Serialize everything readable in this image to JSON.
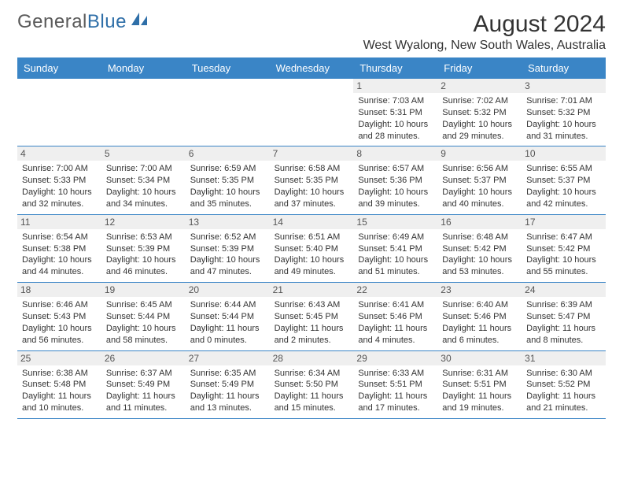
{
  "brand": {
    "name_part1": "General",
    "name_part2": "Blue",
    "accent_color": "#2f6fa8"
  },
  "header": {
    "month_title": "August 2024",
    "location": "West Wyalong, New South Wales, Australia"
  },
  "colors": {
    "header_bg": "#3a85c6",
    "header_text": "#ffffff",
    "daynum_bg": "#efefef",
    "row_border": "#3a85c6"
  },
  "day_names": [
    "Sunday",
    "Monday",
    "Tuesday",
    "Wednesday",
    "Thursday",
    "Friday",
    "Saturday"
  ],
  "weeks": [
    [
      {
        "n": "",
        "sr": "",
        "ss": "",
        "dl": ""
      },
      {
        "n": "",
        "sr": "",
        "ss": "",
        "dl": ""
      },
      {
        "n": "",
        "sr": "",
        "ss": "",
        "dl": ""
      },
      {
        "n": "",
        "sr": "",
        "ss": "",
        "dl": ""
      },
      {
        "n": "1",
        "sr": "Sunrise: 7:03 AM",
        "ss": "Sunset: 5:31 PM",
        "dl": "Daylight: 10 hours and 28 minutes."
      },
      {
        "n": "2",
        "sr": "Sunrise: 7:02 AM",
        "ss": "Sunset: 5:32 PM",
        "dl": "Daylight: 10 hours and 29 minutes."
      },
      {
        "n": "3",
        "sr": "Sunrise: 7:01 AM",
        "ss": "Sunset: 5:32 PM",
        "dl": "Daylight: 10 hours and 31 minutes."
      }
    ],
    [
      {
        "n": "4",
        "sr": "Sunrise: 7:00 AM",
        "ss": "Sunset: 5:33 PM",
        "dl": "Daylight: 10 hours and 32 minutes."
      },
      {
        "n": "5",
        "sr": "Sunrise: 7:00 AM",
        "ss": "Sunset: 5:34 PM",
        "dl": "Daylight: 10 hours and 34 minutes."
      },
      {
        "n": "6",
        "sr": "Sunrise: 6:59 AM",
        "ss": "Sunset: 5:35 PM",
        "dl": "Daylight: 10 hours and 35 minutes."
      },
      {
        "n": "7",
        "sr": "Sunrise: 6:58 AM",
        "ss": "Sunset: 5:35 PM",
        "dl": "Daylight: 10 hours and 37 minutes."
      },
      {
        "n": "8",
        "sr": "Sunrise: 6:57 AM",
        "ss": "Sunset: 5:36 PM",
        "dl": "Daylight: 10 hours and 39 minutes."
      },
      {
        "n": "9",
        "sr": "Sunrise: 6:56 AM",
        "ss": "Sunset: 5:37 PM",
        "dl": "Daylight: 10 hours and 40 minutes."
      },
      {
        "n": "10",
        "sr": "Sunrise: 6:55 AM",
        "ss": "Sunset: 5:37 PM",
        "dl": "Daylight: 10 hours and 42 minutes."
      }
    ],
    [
      {
        "n": "11",
        "sr": "Sunrise: 6:54 AM",
        "ss": "Sunset: 5:38 PM",
        "dl": "Daylight: 10 hours and 44 minutes."
      },
      {
        "n": "12",
        "sr": "Sunrise: 6:53 AM",
        "ss": "Sunset: 5:39 PM",
        "dl": "Daylight: 10 hours and 46 minutes."
      },
      {
        "n": "13",
        "sr": "Sunrise: 6:52 AM",
        "ss": "Sunset: 5:39 PM",
        "dl": "Daylight: 10 hours and 47 minutes."
      },
      {
        "n": "14",
        "sr": "Sunrise: 6:51 AM",
        "ss": "Sunset: 5:40 PM",
        "dl": "Daylight: 10 hours and 49 minutes."
      },
      {
        "n": "15",
        "sr": "Sunrise: 6:49 AM",
        "ss": "Sunset: 5:41 PM",
        "dl": "Daylight: 10 hours and 51 minutes."
      },
      {
        "n": "16",
        "sr": "Sunrise: 6:48 AM",
        "ss": "Sunset: 5:42 PM",
        "dl": "Daylight: 10 hours and 53 minutes."
      },
      {
        "n": "17",
        "sr": "Sunrise: 6:47 AM",
        "ss": "Sunset: 5:42 PM",
        "dl": "Daylight: 10 hours and 55 minutes."
      }
    ],
    [
      {
        "n": "18",
        "sr": "Sunrise: 6:46 AM",
        "ss": "Sunset: 5:43 PM",
        "dl": "Daylight: 10 hours and 56 minutes."
      },
      {
        "n": "19",
        "sr": "Sunrise: 6:45 AM",
        "ss": "Sunset: 5:44 PM",
        "dl": "Daylight: 10 hours and 58 minutes."
      },
      {
        "n": "20",
        "sr": "Sunrise: 6:44 AM",
        "ss": "Sunset: 5:44 PM",
        "dl": "Daylight: 11 hours and 0 minutes."
      },
      {
        "n": "21",
        "sr": "Sunrise: 6:43 AM",
        "ss": "Sunset: 5:45 PM",
        "dl": "Daylight: 11 hours and 2 minutes."
      },
      {
        "n": "22",
        "sr": "Sunrise: 6:41 AM",
        "ss": "Sunset: 5:46 PM",
        "dl": "Daylight: 11 hours and 4 minutes."
      },
      {
        "n": "23",
        "sr": "Sunrise: 6:40 AM",
        "ss": "Sunset: 5:46 PM",
        "dl": "Daylight: 11 hours and 6 minutes."
      },
      {
        "n": "24",
        "sr": "Sunrise: 6:39 AM",
        "ss": "Sunset: 5:47 PM",
        "dl": "Daylight: 11 hours and 8 minutes."
      }
    ],
    [
      {
        "n": "25",
        "sr": "Sunrise: 6:38 AM",
        "ss": "Sunset: 5:48 PM",
        "dl": "Daylight: 11 hours and 10 minutes."
      },
      {
        "n": "26",
        "sr": "Sunrise: 6:37 AM",
        "ss": "Sunset: 5:49 PM",
        "dl": "Daylight: 11 hours and 11 minutes."
      },
      {
        "n": "27",
        "sr": "Sunrise: 6:35 AM",
        "ss": "Sunset: 5:49 PM",
        "dl": "Daylight: 11 hours and 13 minutes."
      },
      {
        "n": "28",
        "sr": "Sunrise: 6:34 AM",
        "ss": "Sunset: 5:50 PM",
        "dl": "Daylight: 11 hours and 15 minutes."
      },
      {
        "n": "29",
        "sr": "Sunrise: 6:33 AM",
        "ss": "Sunset: 5:51 PM",
        "dl": "Daylight: 11 hours and 17 minutes."
      },
      {
        "n": "30",
        "sr": "Sunrise: 6:31 AM",
        "ss": "Sunset: 5:51 PM",
        "dl": "Daylight: 11 hours and 19 minutes."
      },
      {
        "n": "31",
        "sr": "Sunrise: 6:30 AM",
        "ss": "Sunset: 5:52 PM",
        "dl": "Daylight: 11 hours and 21 minutes."
      }
    ]
  ]
}
